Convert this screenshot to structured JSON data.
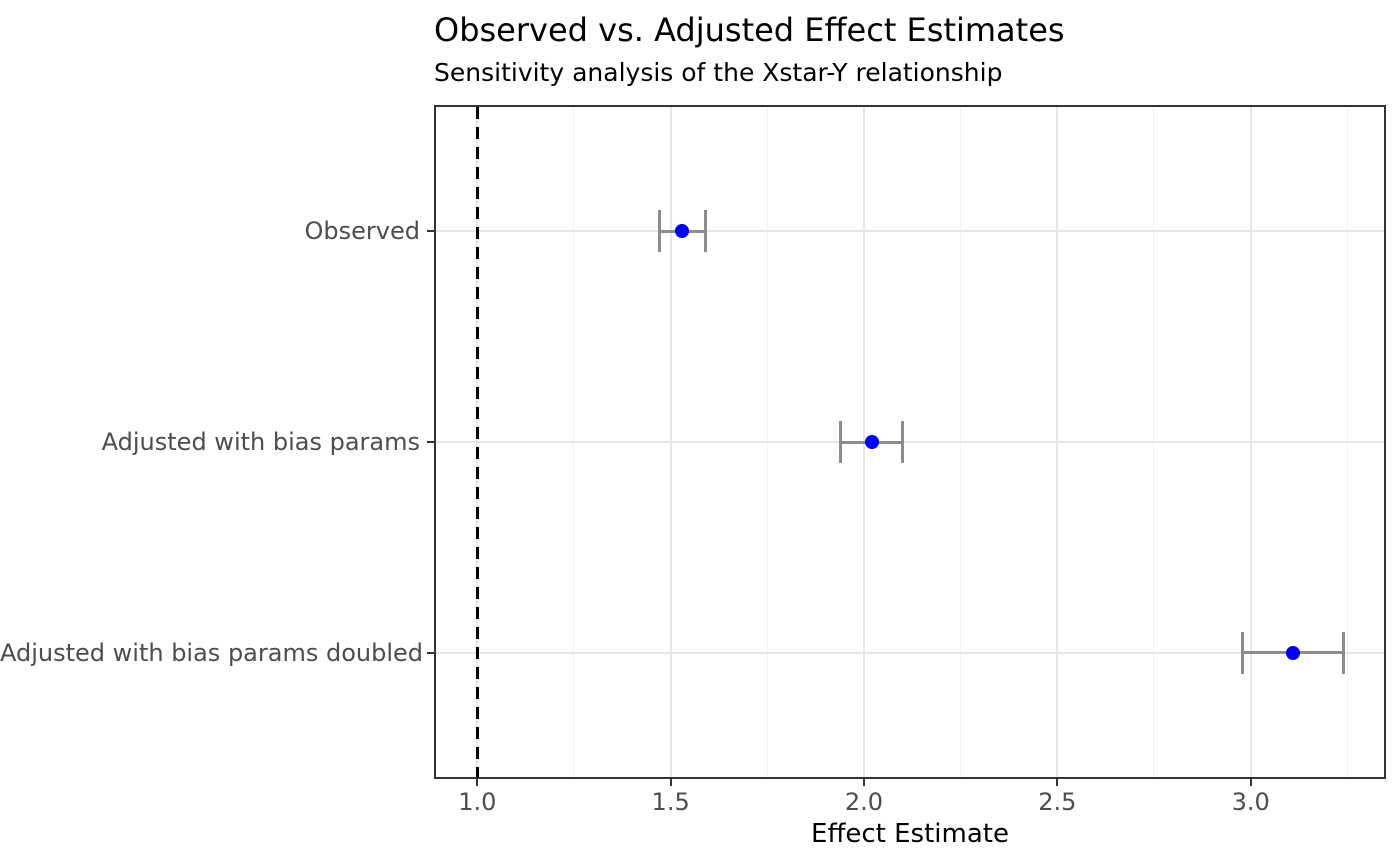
{
  "chart_data": {
    "type": "scatter",
    "variant": "dot-and-whisker forest plot",
    "title": "Observed vs. Adjusted Effect Estimates",
    "subtitle": "Sensitivity analysis of the Xstar-Y relationship",
    "xlabel": "Effect Estimate",
    "ylabel": "",
    "xlim": [
      0.888,
      3.35
    ],
    "x_ticks": [
      1.0,
      1.5,
      2.0,
      2.5,
      3.0
    ],
    "x_tick_labels": [
      "1.0",
      "1.5",
      "2.0",
      "2.5",
      "3.0"
    ],
    "x_minor_ticks": [
      1.25,
      1.75,
      2.25,
      2.75,
      3.25
    ],
    "reference_line_x": 1.0,
    "grid": true,
    "legend": false,
    "rows": [
      {
        "label": "Observed",
        "estimate": 1.53,
        "lower": 1.47,
        "upper": 1.59
      },
      {
        "label": "Adjusted with bias params",
        "estimate": 2.02,
        "lower": 1.94,
        "upper": 2.1
      },
      {
        "label": "Adjusted with bias params doubled",
        "estimate": 3.11,
        "lower": 2.98,
        "upper": 3.24
      }
    ]
  },
  "style": {
    "point_color": "#0000ff",
    "errorbar_color": "#8c8c8c",
    "reference_line_color": "#000000",
    "panel_border_color": "#333333",
    "grid_major_color": "#e6e6e6",
    "grid_minor_color": "#f0f0f0",
    "axis_text_color": "#4d4d4d",
    "title_color": "#000000"
  }
}
